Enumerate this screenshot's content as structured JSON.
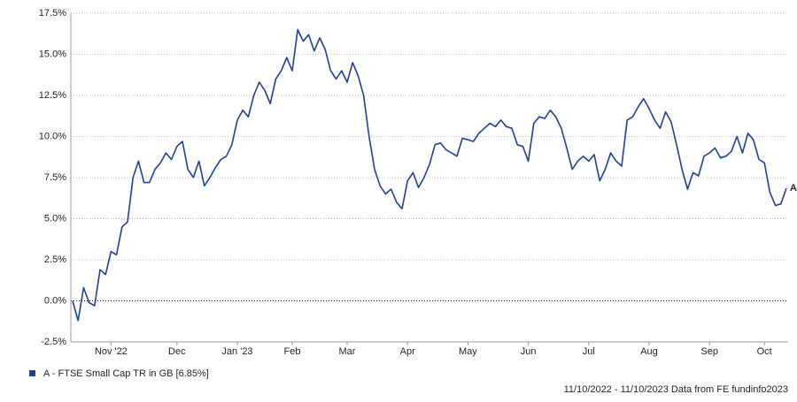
{
  "chart_data": {
    "type": "line",
    "categories": [
      null,
      null,
      null,
      null,
      null,
      null,
      null,
      "Nov '22",
      null,
      null,
      null,
      null,
      null,
      null,
      null,
      null,
      null,
      null,
      null,
      "Dec",
      null,
      null,
      null,
      null,
      null,
      null,
      null,
      null,
      null,
      null,
      "Jan '23",
      null,
      null,
      null,
      null,
      null,
      null,
      null,
      null,
      null,
      "Feb",
      null,
      null,
      null,
      null,
      null,
      null,
      null,
      null,
      null,
      "Mar",
      null,
      null,
      null,
      null,
      null,
      null,
      null,
      null,
      null,
      null,
      "Apr",
      null,
      null,
      null,
      null,
      null,
      null,
      null,
      null,
      null,
      null,
      "May",
      null,
      null,
      null,
      null,
      null,
      null,
      null,
      null,
      null,
      null,
      "Jun",
      null,
      null,
      null,
      null,
      null,
      null,
      null,
      null,
      null,
      null,
      "Jul",
      null,
      null,
      null,
      null,
      null,
      null,
      null,
      null,
      null,
      null,
      "Aug",
      null,
      null,
      null,
      null,
      null,
      null,
      null,
      null,
      null,
      null,
      "Sep",
      null,
      null,
      null,
      null,
      null,
      null,
      null,
      null,
      null,
      "Oct",
      null,
      null,
      null,
      null
    ],
    "series": [
      {
        "name": "A - FTSE Small Cap TR in GB [6.85%]",
        "color": "#1f3f99",
        "end_label": "A",
        "values": [
          0.0,
          -1.2,
          0.8,
          -0.1,
          -0.3,
          1.9,
          1.6,
          3.0,
          2.8,
          4.5,
          4.8,
          7.5,
          8.5,
          7.2,
          7.2,
          8.0,
          8.4,
          9.0,
          8.6,
          9.4,
          9.7,
          8.0,
          7.5,
          8.5,
          7.0,
          7.5,
          8.1,
          8.6,
          8.8,
          9.5,
          11.0,
          11.6,
          11.2,
          12.5,
          13.3,
          12.8,
          12.0,
          13.5,
          14.0,
          14.8,
          14.0,
          16.5,
          15.8,
          16.2,
          15.2,
          16.0,
          15.3,
          14.0,
          13.5,
          14.0,
          13.3,
          14.5,
          13.7,
          12.5,
          10.0,
          8.0,
          7.0,
          6.5,
          6.8,
          6.0,
          5.6,
          7.3,
          7.8,
          6.9,
          7.5,
          8.3,
          9.5,
          9.6,
          9.2,
          9.0,
          8.8,
          9.9,
          9.8,
          9.7,
          10.2,
          10.5,
          10.8,
          10.6,
          11.0,
          10.6,
          10.5,
          9.5,
          9.4,
          8.5,
          10.8,
          11.2,
          11.1,
          11.6,
          11.2,
          10.5,
          9.3,
          8.0,
          8.5,
          8.8,
          8.5,
          8.9,
          7.3,
          8.0,
          9.0,
          8.5,
          8.2,
          11.0,
          11.2,
          11.8,
          12.3,
          11.7,
          11.0,
          10.5,
          11.5,
          10.9,
          9.5,
          8.0,
          6.8,
          7.8,
          7.6,
          8.8,
          9.0,
          9.3,
          8.7,
          8.8,
          9.1,
          10.0,
          9.0,
          10.2,
          9.8,
          8.6,
          8.4,
          6.6,
          5.8,
          5.9,
          6.85
        ]
      }
    ],
    "ylim": [
      -2.5,
      17.5
    ],
    "yticks": [
      {
        "value": -2.5,
        "label": "-2.5%"
      },
      {
        "value": 0,
        "label": "0.0%"
      },
      {
        "value": 2.5,
        "label": "2.5%"
      },
      {
        "value": 5,
        "label": "5.0%"
      },
      {
        "value": 7.5,
        "label": "7.5%"
      },
      {
        "value": 10,
        "label": "10.0%"
      },
      {
        "value": 12.5,
        "label": "12.5%"
      },
      {
        "value": 15,
        "label": "15.0%"
      },
      {
        "value": 17.5,
        "label": "17.5%"
      }
    ],
    "grid": true,
    "footer": "11/10/2022 - 11/10/2023 Data from FE fundinfo2023"
  }
}
